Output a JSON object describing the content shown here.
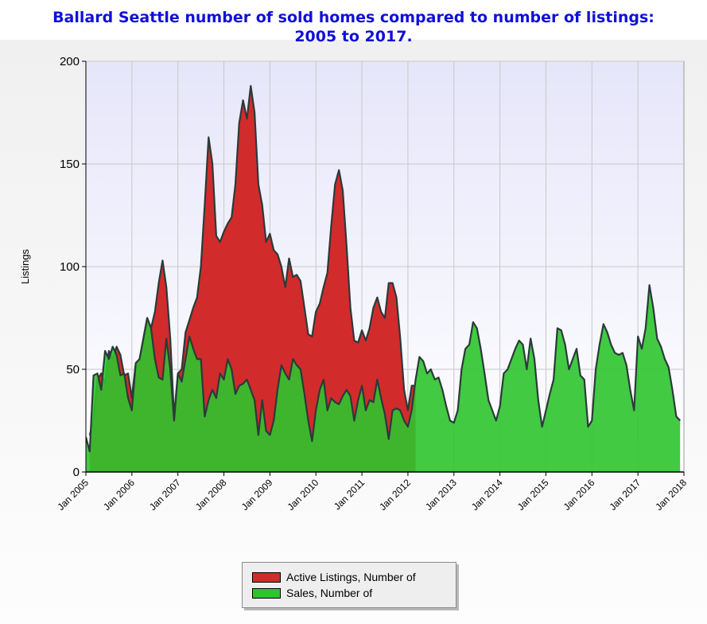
{
  "chart_data": {
    "type": "area",
    "title": [
      "Ballard Seattle number of sold homes compared to number of listings:",
      "2005 to 2017."
    ],
    "xlabel": "",
    "ylabel": "Listings",
    "ylim": [
      0,
      200
    ],
    "yticks": [
      0,
      50,
      100,
      150,
      200
    ],
    "xlim": [
      "2005-01",
      "2018-01"
    ],
    "xticks": [
      "Jan 2005",
      "Jan 2006",
      "Jan 2007",
      "Jan 2008",
      "Jan 2009",
      "Jan 2010",
      "Jan 2011",
      "Jan 2012",
      "Jan 2013",
      "Jan 2014",
      "Jan 2015",
      "Jan 2016",
      "Jan 2017",
      "Jan 2018"
    ],
    "grid": true,
    "legend_position": "bottom-center",
    "series": [
      {
        "name": "Active Listings, Number of",
        "color": "#d22b2b",
        "points": [
          [
            "2005-02",
            18
          ],
          [
            "2005-03",
            25
          ],
          [
            "2005-04",
            45
          ],
          [
            "2005-05",
            48
          ],
          [
            "2005-06",
            43
          ],
          [
            "2005-07",
            59
          ],
          [
            "2005-08",
            55
          ],
          [
            "2005-09",
            61
          ],
          [
            "2005-10",
            57
          ],
          [
            "2005-11",
            47
          ],
          [
            "2005-12",
            48
          ],
          [
            "2006-01",
            36
          ],
          [
            "2006-02",
            53
          ],
          [
            "2006-03",
            55
          ],
          [
            "2006-04",
            65
          ],
          [
            "2006-05",
            75
          ],
          [
            "2006-06",
            70
          ],
          [
            "2006-07",
            78
          ],
          [
            "2006-08",
            92
          ],
          [
            "2006-09",
            103
          ],
          [
            "2006-10",
            90
          ],
          [
            "2006-11",
            65
          ],
          [
            "2006-12",
            27
          ],
          [
            "2007-01",
            48
          ],
          [
            "2007-02",
            50
          ],
          [
            "2007-03",
            68
          ],
          [
            "2007-04",
            74
          ],
          [
            "2007-05",
            80
          ],
          [
            "2007-06",
            85
          ],
          [
            "2007-07",
            100
          ],
          [
            "2007-08",
            130
          ],
          [
            "2007-09",
            163
          ],
          [
            "2007-10",
            150
          ],
          [
            "2007-11",
            115
          ],
          [
            "2007-12",
            112
          ],
          [
            "2008-01",
            117
          ],
          [
            "2008-02",
            121
          ],
          [
            "2008-03",
            124
          ],
          [
            "2008-04",
            140
          ],
          [
            "2008-05",
            170
          ],
          [
            "2008-06",
            181
          ],
          [
            "2008-07",
            172
          ],
          [
            "2008-08",
            188
          ],
          [
            "2008-09",
            175
          ],
          [
            "2008-10",
            140
          ],
          [
            "2008-11",
            130
          ],
          [
            "2008-12",
            112
          ],
          [
            "2009-01",
            116
          ],
          [
            "2009-02",
            108
          ],
          [
            "2009-03",
            106
          ],
          [
            "2009-04",
            100
          ],
          [
            "2009-05",
            90
          ],
          [
            "2009-06",
            104
          ],
          [
            "2009-07",
            95
          ],
          [
            "2009-08",
            96
          ],
          [
            "2009-09",
            93
          ],
          [
            "2009-10",
            80
          ],
          [
            "2009-11",
            67
          ],
          [
            "2009-12",
            66
          ],
          [
            "2010-01",
            78
          ],
          [
            "2010-02",
            82
          ],
          [
            "2010-03",
            90
          ],
          [
            "2010-04",
            97
          ],
          [
            "2010-05",
            120
          ],
          [
            "2010-06",
            140
          ],
          [
            "2010-07",
            147
          ],
          [
            "2010-08",
            137
          ],
          [
            "2010-09",
            110
          ],
          [
            "2010-10",
            80
          ],
          [
            "2010-11",
            64
          ],
          [
            "2010-12",
            63
          ],
          [
            "2011-01",
            69
          ],
          [
            "2011-02",
            64
          ],
          [
            "2011-03",
            70
          ],
          [
            "2011-04",
            80
          ],
          [
            "2011-05",
            85
          ],
          [
            "2011-06",
            78
          ],
          [
            "2011-07",
            75
          ],
          [
            "2011-08",
            92
          ],
          [
            "2011-09",
            92
          ],
          [
            "2011-10",
            85
          ],
          [
            "2011-11",
            65
          ],
          [
            "2011-12",
            40
          ],
          [
            "2012-01",
            30
          ],
          [
            "2012-02",
            42
          ],
          [
            "2012-03",
            42
          ]
        ]
      },
      {
        "name": "Sales, Number of",
        "color": "#2ec42e",
        "points": [
          [
            "2005-01",
            17
          ],
          [
            "2005-02",
            10
          ],
          [
            "2005-03",
            47
          ],
          [
            "2005-04",
            48
          ],
          [
            "2005-05",
            40
          ],
          [
            "2005-06",
            59
          ],
          [
            "2005-07",
            55
          ],
          [
            "2005-08",
            61
          ],
          [
            "2005-09",
            57
          ],
          [
            "2005-10",
            47
          ],
          [
            "2005-11",
            48
          ],
          [
            "2005-12",
            36
          ],
          [
            "2006-01",
            30
          ],
          [
            "2006-02",
            53
          ],
          [
            "2006-03",
            55
          ],
          [
            "2006-04",
            65
          ],
          [
            "2006-05",
            75
          ],
          [
            "2006-06",
            70
          ],
          [
            "2006-07",
            55
          ],
          [
            "2006-08",
            46
          ],
          [
            "2006-09",
            45
          ],
          [
            "2006-10",
            65
          ],
          [
            "2006-11",
            50
          ],
          [
            "2006-12",
            25
          ],
          [
            "2007-01",
            48
          ],
          [
            "2007-02",
            44
          ],
          [
            "2007-03",
            55
          ],
          [
            "2007-04",
            66
          ],
          [
            "2007-05",
            60
          ],
          [
            "2007-06",
            55
          ],
          [
            "2007-07",
            55
          ],
          [
            "2007-08",
            27
          ],
          [
            "2007-09",
            35
          ],
          [
            "2007-10",
            40
          ],
          [
            "2007-11",
            36
          ],
          [
            "2007-12",
            48
          ],
          [
            "2008-01",
            45
          ],
          [
            "2008-02",
            55
          ],
          [
            "2008-03",
            50
          ],
          [
            "2008-04",
            38
          ],
          [
            "2008-05",
            42
          ],
          [
            "2008-06",
            43
          ],
          [
            "2008-07",
            45
          ],
          [
            "2008-08",
            40
          ],
          [
            "2008-09",
            35
          ],
          [
            "2008-10",
            18
          ],
          [
            "2008-11",
            35
          ],
          [
            "2008-12",
            20
          ],
          [
            "2009-01",
            18
          ],
          [
            "2009-02",
            25
          ],
          [
            "2009-03",
            40
          ],
          [
            "2009-04",
            52
          ],
          [
            "2009-05",
            48
          ],
          [
            "2009-06",
            45
          ],
          [
            "2009-07",
            55
          ],
          [
            "2009-08",
            52
          ],
          [
            "2009-09",
            50
          ],
          [
            "2009-10",
            38
          ],
          [
            "2009-11",
            25
          ],
          [
            "2009-12",
            15
          ],
          [
            "2010-01",
            30
          ],
          [
            "2010-02",
            40
          ],
          [
            "2010-03",
            45
          ],
          [
            "2010-04",
            30
          ],
          [
            "2010-05",
            36
          ],
          [
            "2010-06",
            34
          ],
          [
            "2010-07",
            33
          ],
          [
            "2010-08",
            37
          ],
          [
            "2010-09",
            40
          ],
          [
            "2010-10",
            37
          ],
          [
            "2010-11",
            25
          ],
          [
            "2010-12",
            35
          ],
          [
            "2011-01",
            42
          ],
          [
            "2011-02",
            30
          ],
          [
            "2011-03",
            35
          ],
          [
            "2011-04",
            34
          ],
          [
            "2011-05",
            45
          ],
          [
            "2011-06",
            36
          ],
          [
            "2011-07",
            28
          ],
          [
            "2011-08",
            16
          ],
          [
            "2011-09",
            30
          ],
          [
            "2011-10",
            31
          ],
          [
            "2011-11",
            30
          ],
          [
            "2011-12",
            25
          ],
          [
            "2012-01",
            22
          ],
          [
            "2012-02",
            30
          ],
          [
            "2012-03",
            45
          ],
          [
            "2012-04",
            56
          ],
          [
            "2012-05",
            54
          ],
          [
            "2012-06",
            48
          ],
          [
            "2012-07",
            50
          ],
          [
            "2012-08",
            45
          ],
          [
            "2012-09",
            46
          ],
          [
            "2012-10",
            40
          ],
          [
            "2012-11",
            32
          ],
          [
            "2012-12",
            25
          ],
          [
            "2013-01",
            24
          ],
          [
            "2013-02",
            30
          ],
          [
            "2013-03",
            50
          ],
          [
            "2013-04",
            60
          ],
          [
            "2013-05",
            62
          ],
          [
            "2013-06",
            73
          ],
          [
            "2013-07",
            70
          ],
          [
            "2013-08",
            60
          ],
          [
            "2013-09",
            48
          ],
          [
            "2013-10",
            35
          ],
          [
            "2013-11",
            30
          ],
          [
            "2013-12",
            25
          ],
          [
            "2014-01",
            32
          ],
          [
            "2014-02",
            48
          ],
          [
            "2014-03",
            50
          ],
          [
            "2014-04",
            55
          ],
          [
            "2014-05",
            60
          ],
          [
            "2014-06",
            64
          ],
          [
            "2014-07",
            62
          ],
          [
            "2014-08",
            50
          ],
          [
            "2014-09",
            65
          ],
          [
            "2014-10",
            55
          ],
          [
            "2014-11",
            35
          ],
          [
            "2014-12",
            22
          ],
          [
            "2015-01",
            30
          ],
          [
            "2015-02",
            38
          ],
          [
            "2015-03",
            45
          ],
          [
            "2015-04",
            70
          ],
          [
            "2015-05",
            69
          ],
          [
            "2015-06",
            62
          ],
          [
            "2015-07",
            50
          ],
          [
            "2015-08",
            55
          ],
          [
            "2015-09",
            60
          ],
          [
            "2015-10",
            47
          ],
          [
            "2015-11",
            45
          ],
          [
            "2015-12",
            22
          ],
          [
            "2016-01",
            25
          ],
          [
            "2016-02",
            50
          ],
          [
            "2016-03",
            62
          ],
          [
            "2016-04",
            72
          ],
          [
            "2016-05",
            68
          ],
          [
            "2016-06",
            62
          ],
          [
            "2016-07",
            58
          ],
          [
            "2016-08",
            57
          ],
          [
            "2016-09",
            58
          ],
          [
            "2016-10",
            52
          ],
          [
            "2016-11",
            40
          ],
          [
            "2016-12",
            30
          ],
          [
            "2017-01",
            66
          ],
          [
            "2017-02",
            60
          ],
          [
            "2017-03",
            70
          ],
          [
            "2017-04",
            91
          ],
          [
            "2017-05",
            80
          ],
          [
            "2017-06",
            65
          ],
          [
            "2017-07",
            61
          ],
          [
            "2017-08",
            55
          ],
          [
            "2017-09",
            51
          ],
          [
            "2017-10",
            40
          ],
          [
            "2017-11",
            27
          ],
          [
            "2017-12",
            25
          ]
        ]
      }
    ]
  }
}
